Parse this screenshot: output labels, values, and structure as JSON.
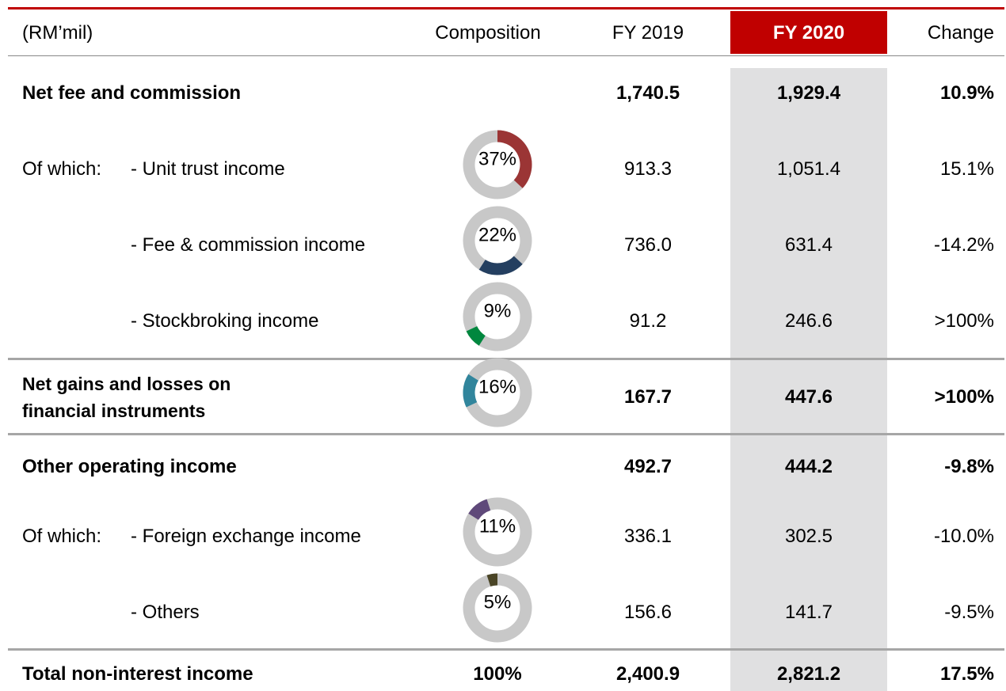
{
  "header": {
    "label": "(RM’mil)",
    "composition": "Composition",
    "fy2019": "FY 2019",
    "fy2020": "FY 2020",
    "change": "Change"
  },
  "rows": [
    {
      "label": "Net fee and commission",
      "fy2019": "1,740.5",
      "fy2020": "1,929.4",
      "change": "10.9%",
      "bold": true
    },
    {
      "prefix": "Of which:",
      "label": "- Unit trust income",
      "composition": {
        "value": 37,
        "label": "37%",
        "color": "#9b3535"
      },
      "fy2019": "913.3",
      "fy2020": "1,051.4",
      "change": "15.1%"
    },
    {
      "label": "- Fee & commission income",
      "composition": {
        "value": 22,
        "label": "22%",
        "color": "#243f60"
      },
      "fy2019": "736.0",
      "fy2020": "631.4",
      "change": "-14.2%"
    },
    {
      "label": "- Stockbroking income",
      "composition": {
        "value": 9,
        "label": "9%",
        "color": "#00873e"
      },
      "fy2019": "91.2",
      "fy2020": "246.6",
      "change": ">100%"
    },
    {
      "label": "Net gains and losses on financial instruments",
      "composition": {
        "value": 16,
        "label": "16%",
        "color": "#31859c"
      },
      "fy2019": "167.7",
      "fy2020": "447.6",
      "change": ">100%",
      "bold": true
    },
    {
      "label": "Other operating income",
      "fy2019": "492.7",
      "fy2020": "444.2",
      "change": "-9.8%",
      "bold": true
    },
    {
      "prefix": "Of which:",
      "label": "- Foreign exchange income",
      "composition": {
        "value": 11,
        "label": "11%",
        "color": "#5f497a"
      },
      "fy2019": "336.1",
      "fy2020": "302.5",
      "change": "-10.0%"
    },
    {
      "label": "- Others",
      "composition": {
        "value": 5,
        "label": "5%",
        "color": "#4a4526"
      },
      "fy2019": "156.6",
      "fy2020": "141.7",
      "change": "-9.5%"
    },
    {
      "label": "Total non-interest income",
      "composition": "100%",
      "fy2019": "2,400.9",
      "fy2020": "2,821.2",
      "change": "17.5%",
      "bold": true
    }
  ]
}
